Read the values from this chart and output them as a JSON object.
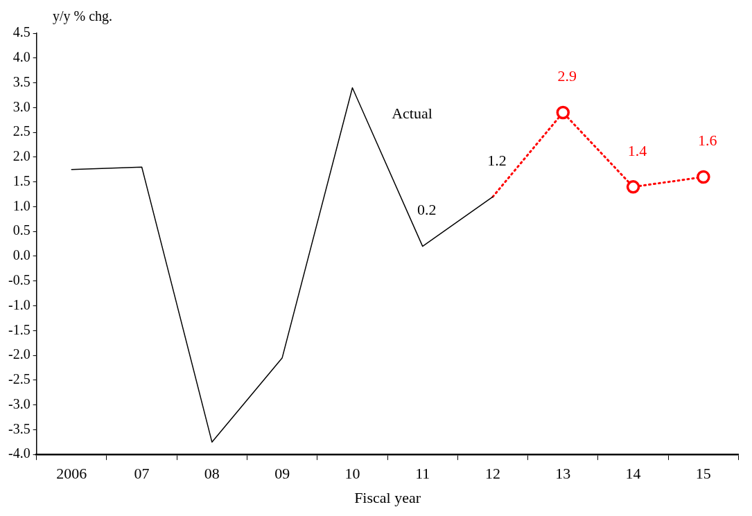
{
  "chart_data": {
    "type": "line",
    "ylabel": "y/y % chg.",
    "xlabel": "Fiscal year",
    "categories": [
      "2006",
      "07",
      "08",
      "09",
      "10",
      "11",
      "12",
      "13",
      "14",
      "15"
    ],
    "series": [
      {
        "name": "Actual",
        "color": "#000000",
        "line_style": "solid",
        "marker": "none",
        "values": [
          1.75,
          1.8,
          -3.75,
          -2.05,
          3.4,
          0.2,
          1.2,
          null,
          null,
          null
        ],
        "value_labels": [
          null,
          null,
          null,
          null,
          null,
          "0.2",
          "1.2",
          null,
          null,
          null
        ]
      },
      {
        "color": "#ff0000",
        "line_style": "dotted",
        "marker": "circle",
        "values": [
          null,
          null,
          null,
          null,
          null,
          null,
          1.2,
          2.9,
          1.4,
          1.6
        ],
        "value_labels": [
          null,
          null,
          null,
          null,
          null,
          null,
          null,
          "2.9",
          "1.4",
          "1.6"
        ]
      }
    ],
    "ylim": [
      -4,
      4.5
    ],
    "yticks": [
      {
        "value": -4,
        "label": "-4.0"
      },
      -3.5,
      {
        "value": -3,
        "label": "-3.0"
      },
      -2.5,
      {
        "value": -2,
        "label": "-2.0"
      },
      -1.5,
      {
        "value": -1,
        "label": "-1.0"
      },
      -0.5,
      {
        "value": 0,
        "label": "0.0"
      },
      0.5,
      {
        "value": 1,
        "label": "1.0"
      },
      1.5,
      {
        "value": 2,
        "label": "2.0"
      },
      2.5,
      {
        "value": 3,
        "label": "3.0"
      },
      3.5,
      {
        "value": 4,
        "label": "4.0"
      },
      4.5
    ],
    "grid": false,
    "legend": false
  }
}
